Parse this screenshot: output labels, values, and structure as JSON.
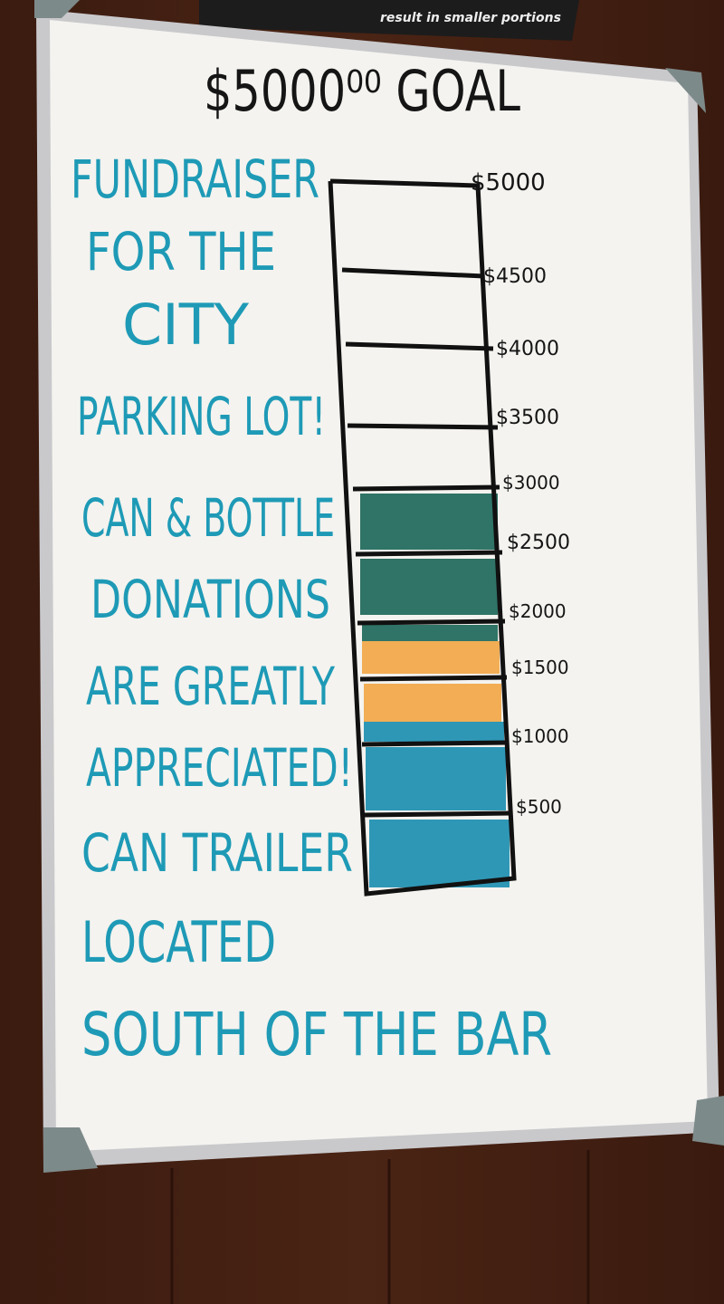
{
  "sign": {
    "text": "result in smaller portions"
  },
  "title": "$5000⁰⁰ GOAL",
  "message": [
    "FUNDRAISER",
    "FOR THE",
    "CITY",
    "PARKING LOT!",
    "CAN & BOTTLE",
    "DONATIONS",
    "ARE GREATLY",
    "APPRECIATED!",
    "CAN TRAILER",
    "LOCATED",
    "SOUTH OF THE BAR"
  ],
  "scale": [
    "$5000",
    "$4500",
    "$4000",
    "$3500",
    "$3000",
    "$2500",
    "$2000",
    "$1500",
    "$1000",
    "$500"
  ]
}
